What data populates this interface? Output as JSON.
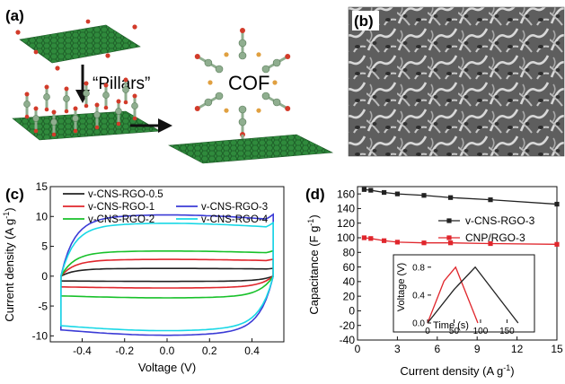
{
  "panels": {
    "a": {
      "label": "(a)",
      "pillars_text": "“Pillars”",
      "cof_text": "COF",
      "colors": {
        "graphene": "#2f8a3c",
        "linker": "#8fae8f",
        "oxygen": "#d23b2a",
        "boron": "#e0a040"
      }
    },
    "b": {
      "label": "(b)",
      "image": "sem-micrograph-nanosheets"
    }
  },
  "chart_data": [
    {
      "panel": "(c)",
      "type": "line",
      "xlabel": "Voltage (V)",
      "ylabel": "Current density (A g",
      "ylabel_sup": "-1",
      "ylabel_tail": ")",
      "xlim": [
        -0.55,
        0.55
      ],
      "ylim": [
        -11,
        15
      ],
      "xticks": [
        -0.4,
        -0.2,
        0.0,
        0.2,
        0.4
      ],
      "xtick_labels": [
        "-0.4",
        "-0.2",
        "0.0",
        "0.2",
        "0.4"
      ],
      "yticks": [
        -10,
        -5,
        0,
        5,
        10,
        15
      ],
      "ytick_labels": [
        "-10",
        "-5",
        "0",
        "5",
        "10",
        "15"
      ],
      "legend": "top",
      "series": [
        {
          "name": "v-CNS-RGO-0.5",
          "color": "#222222",
          "upper": 1.2,
          "lower": -0.8
        },
        {
          "name": "v-CNS-RGO-1",
          "color": "#e0262c",
          "upper": 2.6,
          "lower": -1.8
        },
        {
          "name": "v-CNS-RGO-2",
          "color": "#18c12a",
          "upper": 3.9,
          "lower": -3.3
        },
        {
          "name": "v-CNS-RGO-3",
          "color": "#3b3bd6",
          "upper": 9.5,
          "lower": -9.0
        },
        {
          "name": "v-CNS-RGO-4",
          "color": "#19d8e6",
          "upper": 8.2,
          "lower": -8.3
        }
      ]
    },
    {
      "panel": "(d)",
      "type": "line",
      "xlabel": "Current density (A g",
      "xlabel_sup": "-1",
      "xlabel_tail": ")",
      "ylabel": "Capacitance (F g",
      "ylabel_sup": "-1",
      "ylabel_tail": ")",
      "xlim": [
        0,
        15
      ],
      "ylim": [
        -40,
        170
      ],
      "xticks": [
        0,
        3,
        6,
        9,
        12,
        15
      ],
      "xtick_labels": [
        "0",
        "3",
        "6",
        "9",
        "12",
        "15"
      ],
      "yticks": [
        -40,
        -20,
        0,
        20,
        40,
        60,
        80,
        100,
        120,
        140,
        160
      ],
      "ytick_labels": [
        "-40",
        "-20",
        "0",
        "20",
        "40",
        "60",
        "80",
        "100",
        "120",
        "140",
        "160"
      ],
      "legend": "right",
      "series": [
        {
          "name": "v-CNS-RGO-3",
          "color": "#222222",
          "x": [
            0.5,
            1,
            2,
            3,
            5,
            7,
            10,
            15
          ],
          "y": [
            166,
            165,
            162,
            160,
            158,
            155,
            152,
            146
          ]
        },
        {
          "name": "CNP/RGO-3",
          "color": "#e0262c",
          "x": [
            0.5,
            1,
            2,
            3,
            5,
            7,
            10,
            15
          ],
          "y": [
            100,
            99,
            96,
            94,
            93,
            93,
            92,
            91
          ]
        }
      ],
      "inset": {
        "type": "line",
        "xlabel": "Time (s)",
        "ylabel": "Voltage (V)",
        "xlim": [
          0,
          190
        ],
        "ylim": [
          0,
          0.9
        ],
        "xticks": [
          0,
          50,
          100,
          150
        ],
        "xtick_labels": [
          "0",
          "50",
          "100",
          "150"
        ],
        "yticks": [
          0.0,
          0.4,
          0.8
        ],
        "ytick_labels": [
          "0.0",
          "0.4",
          "0.8"
        ],
        "series": [
          {
            "name": "CNP/RGO-3",
            "color": "#e0262c",
            "x": [
              0,
              31,
              53,
              95
            ],
            "y": [
              0.0,
              0.6,
              0.8,
              0.0
            ]
          },
          {
            "name": "v-CNS-RGO-3",
            "color": "#222222",
            "x": [
              0,
              50,
              90,
              171
            ],
            "y": [
              0.0,
              0.48,
              0.8,
              0.0
            ]
          }
        ]
      }
    }
  ]
}
